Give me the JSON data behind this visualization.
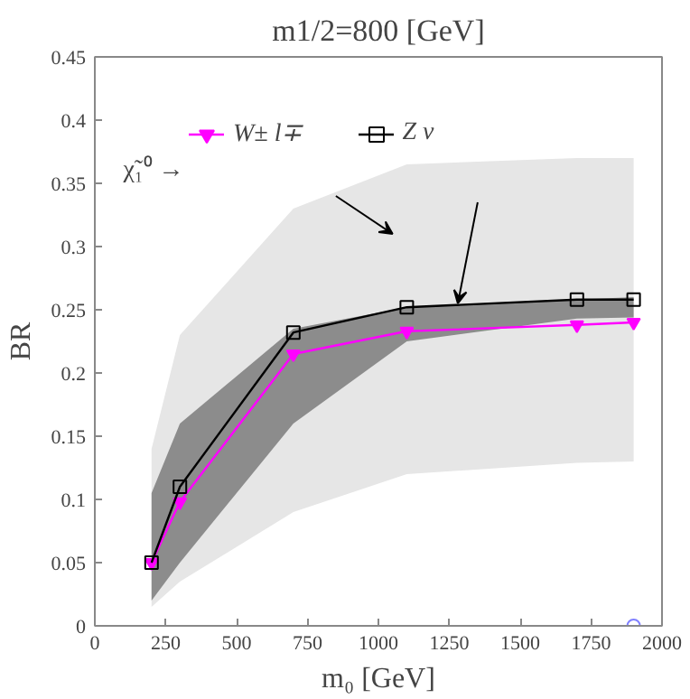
{
  "chart_data": {
    "type": "line",
    "title": "m1/2=800 [GeV]",
    "xlabel": "m₀ [GeV]",
    "ylabel": "BR",
    "annotations": [
      "χ̃₁⁰ →"
    ],
    "xlim": [
      0,
      2000
    ],
    "xticks": [
      0,
      250,
      500,
      750,
      1000,
      1250,
      1500,
      1750,
      2000
    ],
    "ylim": [
      0,
      0.45
    ],
    "yticks": [
      0,
      0.05,
      0.1,
      0.15,
      0.2,
      0.25,
      0.3,
      0.35,
      0.4,
      0.45
    ],
    "grid": false,
    "legend": "top left",
    "series": [
      {
        "name": "W± l∓",
        "color": "#ff00ff",
        "marker": "triangle",
        "x": [
          200,
          300,
          700,
          1100,
          1700,
          1900
        ],
        "values": [
          0.05,
          0.098,
          0.215,
          0.233,
          0.238,
          0.24
        ],
        "lower": [
          0.015,
          0.035,
          0.09,
          0.12,
          0.129,
          0.13
        ],
        "upper": [
          0.14,
          0.23,
          0.33,
          0.365,
          0.37,
          0.37
        ]
      },
      {
        "name": "Z ν",
        "color": "#000000",
        "marker": "square",
        "x": [
          200,
          300,
          700,
          1100,
          1700,
          1900
        ],
        "values": [
          0.05,
          0.11,
          0.232,
          0.252,
          0.258,
          0.258
        ],
        "lower": [
          0.02,
          0.05,
          0.16,
          0.225,
          0.243,
          0.244
        ],
        "upper": [
          0.105,
          0.16,
          0.235,
          0.252,
          0.258,
          0.26
        ]
      },
      {
        "type": "scatter",
        "color": "#8080ff",
        "marker": "circle",
        "x": [
          1900
        ],
        "values": [
          0
        ]
      }
    ]
  }
}
